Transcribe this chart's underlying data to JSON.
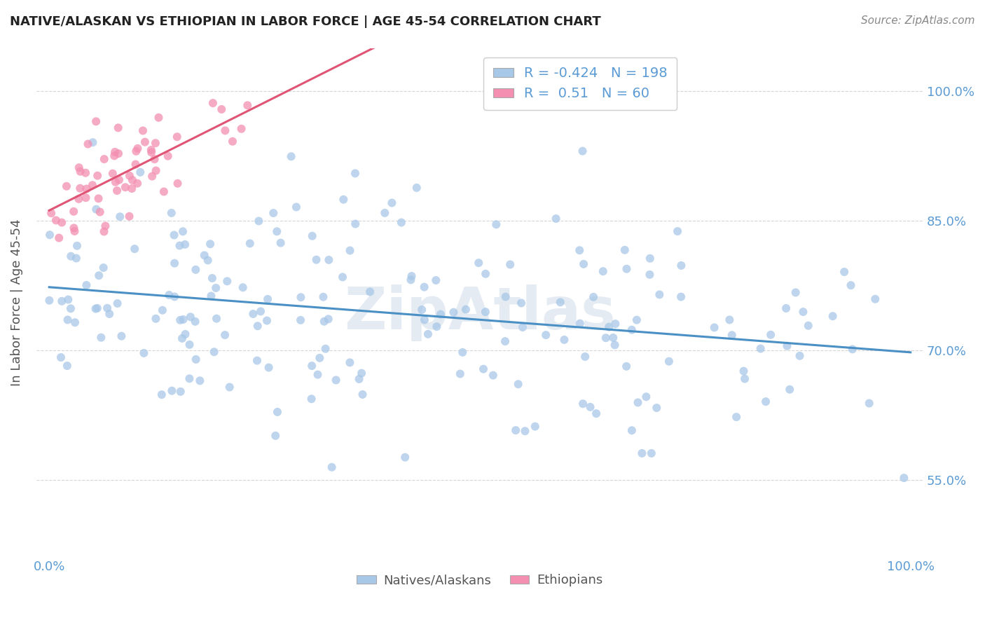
{
  "title": "NATIVE/ALASKAN VS ETHIOPIAN IN LABOR FORCE | AGE 45-54 CORRELATION CHART",
  "source": "Source: ZipAtlas.com",
  "ylabel": "In Labor Force | Age 45-54",
  "xlim": [
    0.0,
    1.0
  ],
  "ylim": [
    0.46,
    1.05
  ],
  "x_ticks": [
    0.0,
    1.0
  ],
  "x_tick_labels": [
    "0.0%",
    "100.0%"
  ],
  "y_ticks": [
    0.55,
    0.7,
    0.85,
    1.0
  ],
  "y_tick_labels": [
    "55.0%",
    "70.0%",
    "85.0%",
    "100.0%"
  ],
  "native_color": "#a8c8e8",
  "ethiopian_color": "#f48fb1",
  "native_line_color": "#4a90c4",
  "ethiopian_line_color": "#e05575",
  "native_R": -0.424,
  "native_N": 198,
  "ethiopian_R": 0.51,
  "ethiopian_N": 60,
  "watermark": "ZipAtlas",
  "background_color": "#ffffff",
  "grid_color": "#cccccc",
  "tick_color": "#5b9bd5",
  "legend_border_color": "#cccccc"
}
